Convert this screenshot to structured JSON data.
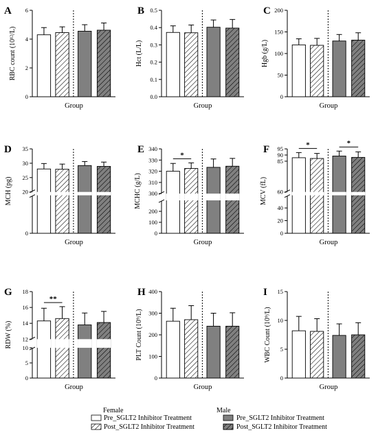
{
  "legend": {
    "female_title": "Female",
    "male_title": "Male",
    "items": [
      {
        "label": "Pre_SGLT2 Inhibitor Treatment",
        "fill": "#ffffff",
        "hatch": false
      },
      {
        "label": "Post_SGLT2 Inhibitor Treatment",
        "fill": "#ffffff",
        "hatch": true
      },
      {
        "label": "Pre_SGLT2 Inhibitor Treatment",
        "fill": "#808080",
        "hatch": false
      },
      {
        "label": "Post_SGLT2 Inhibitor Treatment",
        "fill": "#808080",
        "hatch": true
      }
    ]
  },
  "colors": {
    "female_bar": "#ffffff",
    "male_bar": "#808080",
    "axis": "#000000"
  },
  "chart_data": [
    {
      "type": "bar",
      "panel": "A",
      "ylabel": "RBC count (10¹²/L)",
      "xlabel": "Group",
      "ylim": [
        0,
        6
      ],
      "yticks": [
        "0",
        "2",
        "4",
        "6"
      ],
      "broken": false,
      "values": [
        4.3,
        4.45,
        4.55,
        4.62
      ],
      "errors": [
        0.5,
        0.4,
        0.45,
        0.5
      ],
      "significance": []
    },
    {
      "type": "bar",
      "panel": "B",
      "ylabel": "Hct (L/L)",
      "xlabel": "Group",
      "ylim": [
        0,
        0.5
      ],
      "yticks": [
        "0.0",
        "0.1",
        "0.2",
        "0.3",
        "0.4",
        "0.5"
      ],
      "broken": false,
      "values": [
        0.372,
        0.37,
        0.402,
        0.397
      ],
      "errors": [
        0.038,
        0.045,
        0.042,
        0.05
      ],
      "significance": []
    },
    {
      "type": "bar",
      "panel": "C",
      "ylabel": "Hgb (g/L)",
      "xlabel": "Group",
      "ylim": [
        0,
        200
      ],
      "yticks": [
        "0",
        "50",
        "100",
        "150",
        "200"
      ],
      "broken": false,
      "values": [
        120,
        119,
        129,
        131
      ],
      "errors": [
        14,
        16,
        15,
        17
      ],
      "significance": []
    },
    {
      "type": "bar",
      "panel": "D",
      "ylabel": "MCH (pg)",
      "xlabel": "Group",
      "ylim": [
        0,
        35
      ],
      "yticks": [
        "0",
        "20",
        "25",
        "30",
        "35"
      ],
      "broken": true,
      "values": [
        28.0,
        27.9,
        29.2,
        28.9
      ],
      "errors": [
        1.9,
        1.8,
        1.4,
        1.5
      ],
      "significance": []
    },
    {
      "type": "bar",
      "panel": "E",
      "ylabel": "MCHC (g/L)",
      "xlabel": "Group",
      "ylim": [
        0,
        340
      ],
      "yticks": [
        "0",
        "100",
        "200",
        "300",
        "310",
        "320",
        "330",
        "340"
      ],
      "broken": true,
      "values": [
        320.0,
        322.5,
        323.5,
        324.5
      ],
      "errors": [
        7,
        5,
        7.5,
        7
      ],
      "significance": [
        {
          "from": 0,
          "to": 1,
          "label": "*"
        }
      ]
    },
    {
      "type": "bar",
      "panel": "F",
      "ylabel": "MCV (fL)",
      "xlabel": "Group",
      "ylim": [
        0,
        95
      ],
      "yticks": [
        "0",
        "20",
        "40",
        "60",
        "85",
        "90",
        "95"
      ],
      "broken": true,
      "values": [
        87.8,
        87.2,
        89.2,
        88.1
      ],
      "errors": [
        4.2,
        4.1,
        4.0,
        4.5
      ],
      "significance": [
        {
          "from": 0,
          "to": 1,
          "label": "*"
        },
        {
          "from": 2,
          "to": 3,
          "label": "*"
        }
      ]
    },
    {
      "type": "bar",
      "panel": "G",
      "ylabel": "RDW (%)",
      "xlabel": "Group",
      "ylim": [
        0,
        18
      ],
      "yticks": [
        "0",
        "5",
        "10",
        "12",
        "14",
        "16",
        "18"
      ],
      "broken": true,
      "values": [
        14.3,
        14.6,
        13.8,
        14.1
      ],
      "errors": [
        1.6,
        1.5,
        1.5,
        1.4
      ],
      "significance": [
        {
          "from": 0,
          "to": 1,
          "label": "**"
        }
      ]
    },
    {
      "type": "bar",
      "panel": "H",
      "ylabel": "PLT Count (10⁹/L)",
      "xlabel": "Group",
      "ylim": [
        0,
        400
      ],
      "yticks": [
        "0",
        "100",
        "200",
        "300",
        "400"
      ],
      "broken": false,
      "values": [
        263,
        270,
        240,
        240
      ],
      "errors": [
        60,
        65,
        60,
        62
      ],
      "significance": []
    },
    {
      "type": "bar",
      "panel": "I",
      "ylabel": "WBC Count (10⁹/L)",
      "xlabel": "Group",
      "ylim": [
        0,
        15
      ],
      "yticks": [
        "0",
        "5",
        "10",
        "15"
      ],
      "broken": false,
      "values": [
        8.2,
        8.1,
        7.4,
        7.5
      ],
      "errors": [
        2.5,
        2.2,
        2.0,
        2.1
      ],
      "significance": []
    }
  ]
}
